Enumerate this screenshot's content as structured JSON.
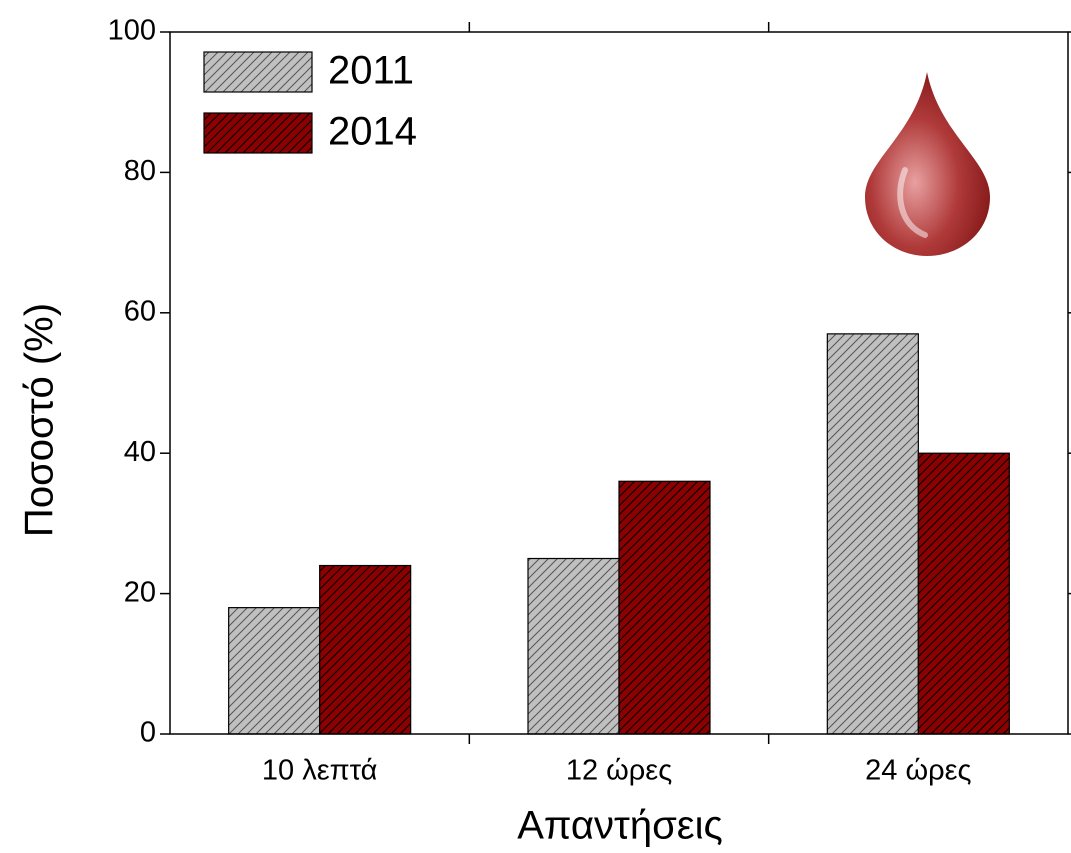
{
  "chart_data": {
    "type": "bar",
    "xlabel": "Απαντήσεις",
    "ylabel": "Ποσοστό  (%)",
    "categories": [
      "10 λεπτά",
      "12 ώρες",
      "24 ώρες"
    ],
    "series": [
      {
        "name": "2011",
        "color": "#c0c0c0",
        "values": [
          18,
          25,
          57
        ]
      },
      {
        "name": "2014",
        "color": "#8b0000",
        "values": [
          24,
          36,
          40
        ]
      }
    ],
    "ylim": [
      0,
      100
    ],
    "yticks": [
      0,
      20,
      40,
      60,
      80,
      100
    ],
    "legend": "upper left"
  }
}
